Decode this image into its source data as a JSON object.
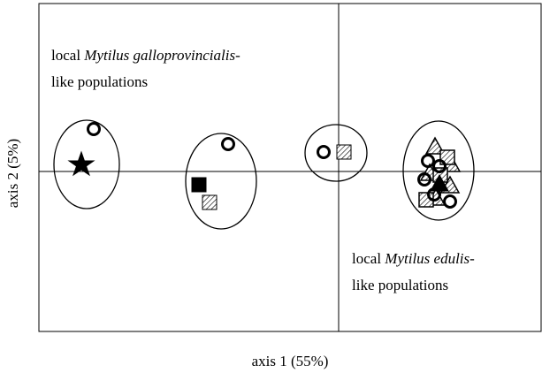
{
  "annotations": [
    {
      "line1": {
        "prefix": "local ",
        "species": "Mytilus galloprovincialis",
        "suffix": "-"
      },
      "line2": "like populations"
    },
    {
      "line1": {
        "prefix": "local ",
        "species": "Mytilus edulis",
        "suffix": "-"
      },
      "line2": "like populations"
    }
  ],
  "axes": {
    "x_label": "axis 1 (55%)",
    "y_label": "axis 2 (5%)"
  }
}
